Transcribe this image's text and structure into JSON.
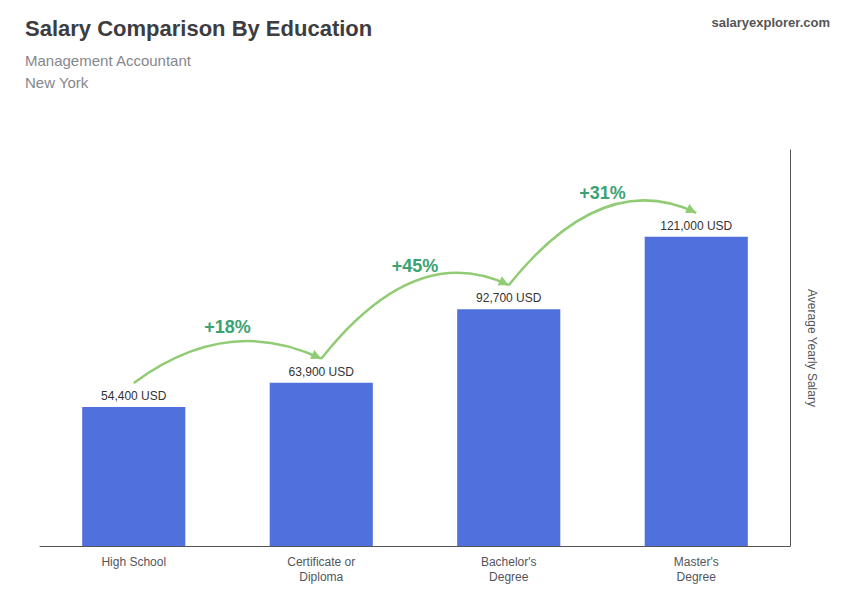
{
  "chart_data": {
    "type": "bar",
    "title": "Salary Comparison By Education",
    "subtitle": [
      "Management Accountant",
      "New York"
    ],
    "source": "salaryexplorer.com",
    "ylabel": "Average Yearly Salary",
    "categories": [
      "High School",
      "Certificate or\nDiploma",
      "Bachelor's\nDegree",
      "Master's\nDegree"
    ],
    "values": [
      54400,
      63900,
      92700,
      121000
    ],
    "value_labels": [
      "54,400 USD",
      "63,900 USD",
      "92,700 USD",
      "121,000 USD"
    ],
    "data_labels": true,
    "annotations": [
      "+18%",
      "+45%",
      "+31%"
    ],
    "ylim": [
      0,
      155000
    ],
    "grid": false,
    "tick_labels": "x"
  }
}
